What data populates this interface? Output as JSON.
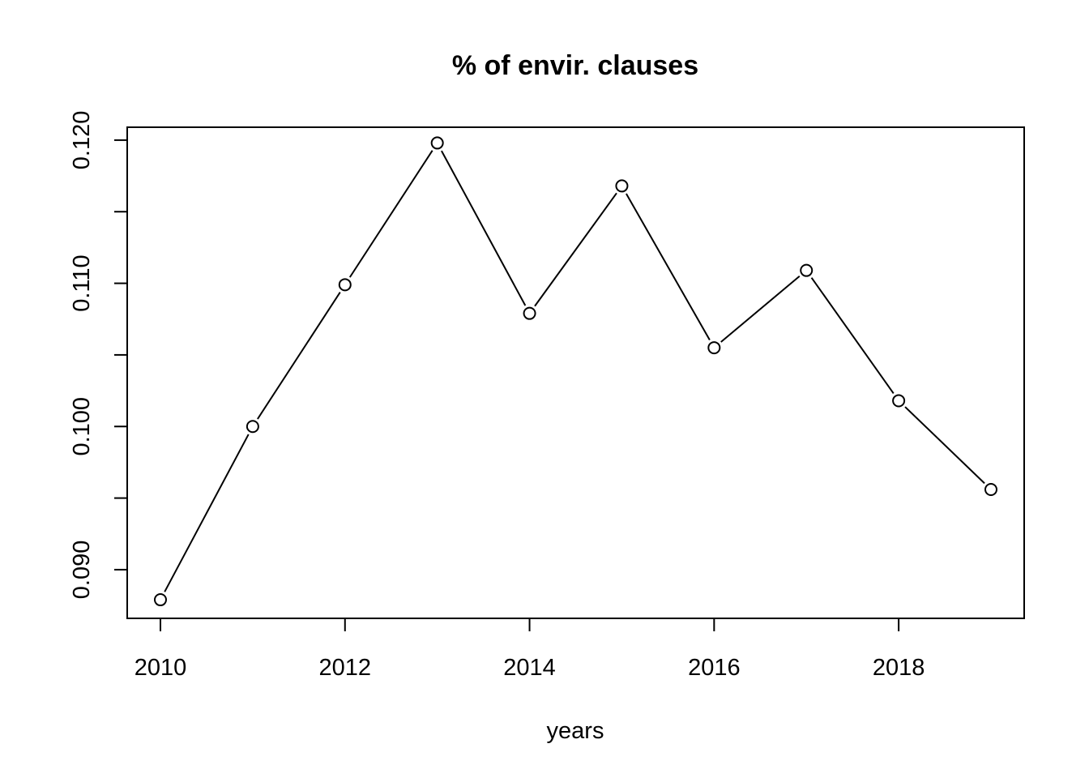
{
  "chart_data": {
    "type": "line",
    "title": "% of envir. clauses",
    "xlabel": "years",
    "ylabel": "",
    "x": [
      2010,
      2011,
      2012,
      2013,
      2014,
      2015,
      2016,
      2017,
      2018,
      2019
    ],
    "series": [
      {
        "values": [
          0.0879,
          0.1,
          0.1099,
          0.1198,
          0.1079,
          0.1168,
          0.1055,
          0.1109,
          0.1018,
          0.0956
        ]
      }
    ],
    "xticks": [
      "2010",
      "2012",
      "2014",
      "2016",
      "2018"
    ],
    "yticks": [
      "0.090",
      "0.100",
      "0.110",
      "0.120"
    ],
    "xlim": [
      2009.64,
      2019.36
    ],
    "ylim": [
      0.0866,
      0.1209
    ],
    "grid": false,
    "markers": "open-circle",
    "line_color": "#000000"
  }
}
